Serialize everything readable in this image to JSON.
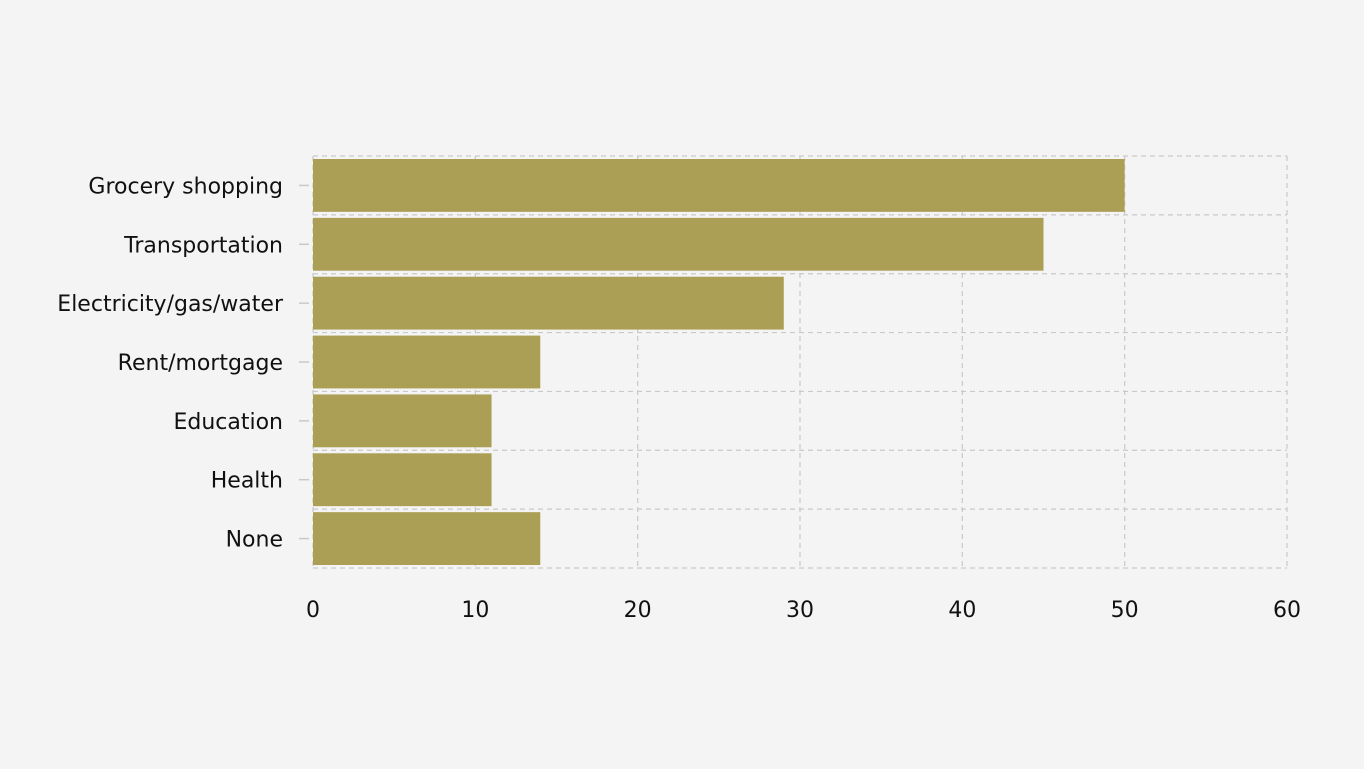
{
  "chart_data": {
    "type": "bar",
    "orientation": "horizontal",
    "categories": [
      "Grocery shopping",
      "Transportation",
      "Electricity/gas/water",
      "Rent/mortgage",
      "Education",
      "Health",
      "None"
    ],
    "values": [
      50,
      45,
      29,
      14,
      11,
      11,
      14
    ],
    "xlim": [
      0,
      60
    ],
    "x_ticks": [
      "0",
      "10",
      "20",
      "30",
      "40",
      "50",
      "60"
    ],
    "title": "",
    "xlabel": "",
    "ylabel": "",
    "grid": true,
    "grid_style": "dashed",
    "legend": "none",
    "colors": {
      "bar": "#ab9f55",
      "grid": "#c9c9c9",
      "background": "#f4f4f4",
      "text": "#111111"
    }
  }
}
